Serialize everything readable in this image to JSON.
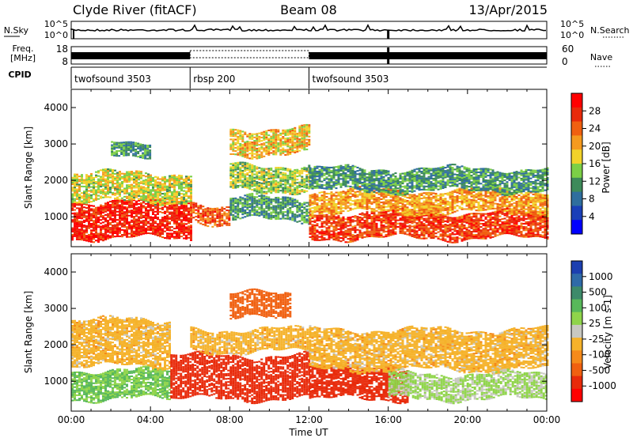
{
  "header": {
    "station": "Clyde River (fitACF)",
    "beam": "Beam 08",
    "date": "13/Apr/2015"
  },
  "noise_panel": {
    "left_label": "N.Sky",
    "right_label": "N.Search",
    "left_ticks": [
      "10^5",
      "10^0"
    ],
    "right_ticks": [
      "10^5",
      "10^0"
    ]
  },
  "freq_panel": {
    "left_label_line1": "Freq.",
    "left_label_line2": "[MHz]",
    "right_label": "Nave",
    "left_ticks": [
      "18",
      "8"
    ],
    "right_ticks": [
      "60",
      "0"
    ]
  },
  "cpid_panel": {
    "label": "CPID",
    "segments": [
      {
        "name": "twofsound 3503",
        "start_hour": 0,
        "end_hour": 6
      },
      {
        "name": "rbsp 200",
        "start_hour": 6,
        "end_hour": 12
      },
      {
        "name": "twofsound 3503",
        "start_hour": 12,
        "end_hour": 24
      }
    ]
  },
  "x_axis": {
    "label": "Time UT",
    "ticks": [
      "00:00",
      "04:00",
      "08:00",
      "12:00",
      "16:00",
      "20:00",
      "00:00"
    ]
  },
  "power_panel": {
    "ylabel": "Slant Range [km]",
    "y_ticks": [
      "1000",
      "2000",
      "3000",
      "4000"
    ],
    "colorbar_label": "Power [dB]",
    "colorbar_ticks": [
      "4",
      "8",
      "12",
      "16",
      "20",
      "24",
      "28"
    ],
    "colors": [
      "#0000ff",
      "#1a3fb8",
      "#2f6e9e",
      "#3d8a5a",
      "#7ccf46",
      "#f2d22a",
      "#f59a1e",
      "#f06010",
      "#e82a0a",
      "#ff0000"
    ]
  },
  "velocity_panel": {
    "ylabel": "Slant Range [km]",
    "y_ticks": [
      "1000",
      "2000",
      "3000",
      "4000"
    ],
    "colorbar_label": "Velocity [m s-1]",
    "colorbar_ticks": [
      "1000",
      "500",
      "100",
      "25",
      "-25",
      "-100",
      "-500",
      "-1000"
    ],
    "colors": [
      "#1c3fb0",
      "#2f6aa8",
      "#3d8a6a",
      "#58b85a",
      "#8fd44a",
      "#c8c8c0",
      "#f5b22a",
      "#f58a1a",
      "#f06010",
      "#e82a0a",
      "#ff0000"
    ]
  },
  "chart_data": {
    "type": "heatmap",
    "x_units": "hours UT",
    "xlim": [
      0,
      24
    ],
    "ylim_km": [
      180,
      4500
    ],
    "panels": [
      {
        "quantity": "power_dB",
        "bands": [
          {
            "t_start": 0,
            "t_end": 6,
            "range_low": 400,
            "range_high": 1400,
            "value": 28
          },
          {
            "t_start": 0,
            "t_end": 6,
            "range_low": 1400,
            "range_high": 2200,
            "value": 16
          },
          {
            "t_start": 2,
            "t_end": 4,
            "range_low": 2700,
            "range_high": 3100,
            "value": 10
          },
          {
            "t_start": 6,
            "t_end": 8,
            "range_low": 800,
            "range_high": 1300,
            "value": 24
          },
          {
            "t_start": 8,
            "t_end": 12,
            "range_low": 900,
            "range_high": 1500,
            "value": 10
          },
          {
            "t_start": 8,
            "t_end": 12,
            "range_low": 1700,
            "range_high": 2400,
            "value": 14
          },
          {
            "t_start": 8,
            "t_end": 12,
            "range_low": 2700,
            "range_high": 3400,
            "value": 18
          },
          {
            "t_start": 12,
            "t_end": 24,
            "range_low": 400,
            "range_high": 1100,
            "value": 26
          },
          {
            "t_start": 12,
            "t_end": 24,
            "range_low": 1100,
            "range_high": 1700,
            "value": 20
          },
          {
            "t_start": 12,
            "t_end": 24,
            "range_low": 1700,
            "range_high": 2300,
            "value": 10
          }
        ]
      },
      {
        "quantity": "velocity_m_s",
        "bands": [
          {
            "t_start": 0,
            "t_end": 5,
            "range_low": 500,
            "range_high": 1300,
            "value": 100
          },
          {
            "t_start": 0,
            "t_end": 5,
            "range_low": 1400,
            "range_high": 2700,
            "value": 0
          },
          {
            "t_start": 5,
            "t_end": 12,
            "range_low": 500,
            "range_high": 1700,
            "value": -300
          },
          {
            "t_start": 6,
            "t_end": 12,
            "range_low": 1800,
            "range_high": 2400,
            "value": 0
          },
          {
            "t_start": 8,
            "t_end": 11,
            "range_low": 2700,
            "range_high": 3400,
            "value": -200
          },
          {
            "t_start": 12,
            "t_end": 17,
            "range_low": 500,
            "range_high": 1400,
            "value": -300
          },
          {
            "t_start": 12,
            "t_end": 24,
            "range_low": 1300,
            "range_high": 2400,
            "value": 0
          },
          {
            "t_start": 16,
            "t_end": 24,
            "range_low": 500,
            "range_high": 1200,
            "value": 60
          }
        ]
      }
    ]
  }
}
